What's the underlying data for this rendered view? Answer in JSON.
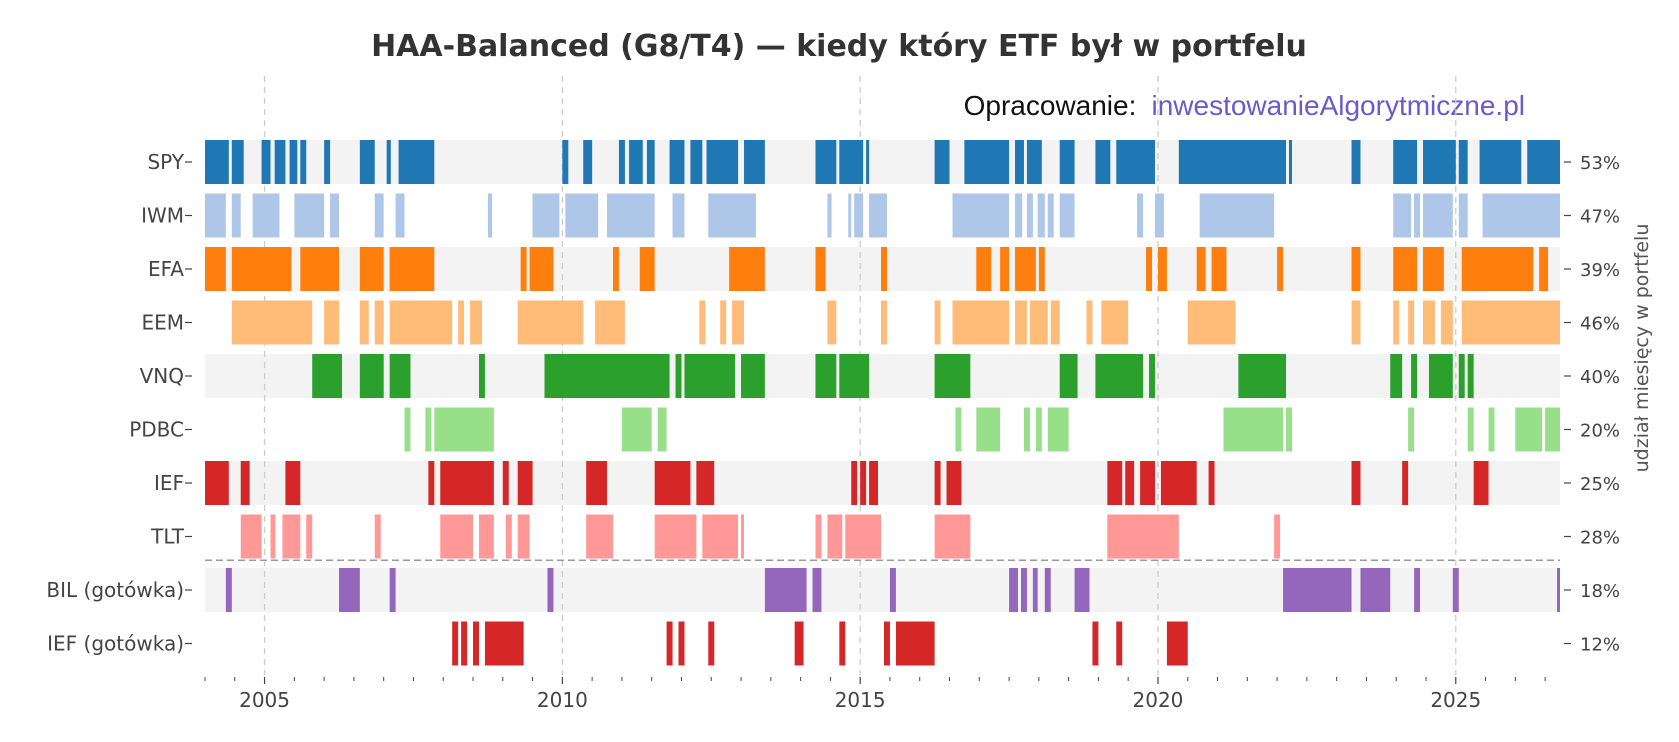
{
  "title": "HAA-Balanced (G8/T4) — kiedy który ETF był w portfelu",
  "credit": {
    "prefix": "Opracowanie:",
    "site": "inwestowanieAlgorytmiczne.pl"
  },
  "chart_data": {
    "type": "timeline",
    "title": "HAA-Balanced (G8/T4) — kiedy który ETF był w portfelu",
    "xlabel": "",
    "ylabel_right": "udział miesięcy w portfelu",
    "xlim": [
      2004.0,
      2026.75
    ],
    "xticks": [
      2005,
      2010,
      2015,
      2020,
      2025
    ],
    "grid_x": true,
    "separator_after_row": 7,
    "rows": [
      {
        "label": "SPY",
        "share": "53%",
        "color": "#1f77b4",
        "band": true,
        "intervals": [
          [
            2004.0,
            2004.4
          ],
          [
            2004.45,
            2004.65
          ],
          [
            2004.95,
            2005.1
          ],
          [
            2005.17,
            2005.35
          ],
          [
            2005.42,
            2005.55
          ],
          [
            2005.6,
            2005.7
          ],
          [
            2006.0,
            2006.1
          ],
          [
            2006.6,
            2006.85
          ],
          [
            2007.05,
            2007.12
          ],
          [
            2007.25,
            2007.85
          ],
          [
            2010.0,
            2010.1
          ],
          [
            2010.35,
            2010.5
          ],
          [
            2010.95,
            2011.05
          ],
          [
            2011.12,
            2011.35
          ],
          [
            2011.42,
            2011.55
          ],
          [
            2011.8,
            2012.05
          ],
          [
            2012.15,
            2012.35
          ],
          [
            2012.42,
            2012.95
          ],
          [
            2013.05,
            2013.4
          ],
          [
            2014.25,
            2014.6
          ],
          [
            2014.65,
            2015.05
          ],
          [
            2015.1,
            2015.15
          ],
          [
            2016.25,
            2016.5
          ],
          [
            2016.75,
            2017.5
          ],
          [
            2017.6,
            2017.75
          ],
          [
            2017.8,
            2018.05
          ],
          [
            2018.35,
            2018.6
          ],
          [
            2018.95,
            2019.2
          ],
          [
            2019.3,
            2019.95
          ],
          [
            2020.35,
            2022.15
          ],
          [
            2022.2,
            2022.25
          ],
          [
            2023.25,
            2023.4
          ],
          [
            2023.95,
            2024.35
          ],
          [
            2024.45,
            2025.0
          ],
          [
            2025.05,
            2025.2
          ],
          [
            2025.4,
            2026.1
          ],
          [
            2026.2,
            2026.75
          ]
        ]
      },
      {
        "label": "IWM",
        "share": "47%",
        "color": "#aec7e8",
        "band": false,
        "intervals": [
          [
            2004.0,
            2004.35
          ],
          [
            2004.45,
            2004.6
          ],
          [
            2004.8,
            2005.25
          ],
          [
            2005.5,
            2006.0
          ],
          [
            2006.1,
            2006.25
          ],
          [
            2006.85,
            2007.0
          ],
          [
            2007.2,
            2007.35
          ],
          [
            2008.75,
            2008.82
          ],
          [
            2009.5,
            2009.95
          ],
          [
            2010.05,
            2010.6
          ],
          [
            2010.75,
            2011.55
          ],
          [
            2011.85,
            2012.05
          ],
          [
            2012.45,
            2013.25
          ],
          [
            2014.45,
            2014.52
          ],
          [
            2014.8,
            2014.85
          ],
          [
            2014.9,
            2015.05
          ],
          [
            2015.15,
            2015.45
          ],
          [
            2016.55,
            2017.5
          ],
          [
            2017.6,
            2017.72
          ],
          [
            2017.8,
            2017.9
          ],
          [
            2017.98,
            2018.1
          ],
          [
            2018.15,
            2018.25
          ],
          [
            2018.35,
            2018.6
          ],
          [
            2019.65,
            2019.75
          ],
          [
            2019.95,
            2020.1
          ],
          [
            2020.7,
            2021.95
          ],
          [
            2023.95,
            2024.25
          ],
          [
            2024.3,
            2024.4
          ],
          [
            2024.45,
            2024.95
          ],
          [
            2025.05,
            2025.2
          ],
          [
            2025.45,
            2026.75
          ]
        ]
      },
      {
        "label": "EFA",
        "share": "39%",
        "color": "#ff7f0e",
        "band": true,
        "intervals": [
          [
            2004.0,
            2004.35
          ],
          [
            2004.45,
            2005.45
          ],
          [
            2005.6,
            2006.25
          ],
          [
            2006.6,
            2007.0
          ],
          [
            2007.1,
            2007.85
          ],
          [
            2009.3,
            2009.4
          ],
          [
            2009.45,
            2009.85
          ],
          [
            2010.85,
            2010.95
          ],
          [
            2011.3,
            2011.55
          ],
          [
            2012.8,
            2013.4
          ],
          [
            2014.25,
            2014.42
          ],
          [
            2015.35,
            2015.45
          ],
          [
            2016.95,
            2017.2
          ],
          [
            2017.35,
            2017.5
          ],
          [
            2017.6,
            2017.95
          ],
          [
            2018.0,
            2018.1
          ],
          [
            2019.8,
            2019.9
          ],
          [
            2020.0,
            2020.15
          ],
          [
            2020.65,
            2020.8
          ],
          [
            2020.9,
            2021.15
          ],
          [
            2022.0,
            2022.1
          ],
          [
            2023.25,
            2023.4
          ],
          [
            2023.95,
            2024.35
          ],
          [
            2024.45,
            2024.8
          ],
          [
            2025.1,
            2026.3
          ],
          [
            2026.4,
            2026.55
          ]
        ]
      },
      {
        "label": "EEM",
        "share": "46%",
        "color": "#ffbb78",
        "band": false,
        "intervals": [
          [
            2004.45,
            2005.8
          ],
          [
            2006.0,
            2006.25
          ],
          [
            2006.6,
            2006.75
          ],
          [
            2006.85,
            2007.0
          ],
          [
            2007.1,
            2008.15
          ],
          [
            2008.25,
            2008.35
          ],
          [
            2008.45,
            2008.65
          ],
          [
            2009.25,
            2010.35
          ],
          [
            2010.55,
            2011.05
          ],
          [
            2012.3,
            2012.4
          ],
          [
            2012.65,
            2012.75
          ],
          [
            2012.85,
            2013.05
          ],
          [
            2014.45,
            2014.6
          ],
          [
            2015.35,
            2015.45
          ],
          [
            2016.25,
            2016.35
          ],
          [
            2016.55,
            2017.5
          ],
          [
            2017.6,
            2017.8
          ],
          [
            2017.85,
            2018.15
          ],
          [
            2018.2,
            2018.35
          ],
          [
            2018.8,
            2018.9
          ],
          [
            2019.05,
            2019.5
          ],
          [
            2020.5,
            2021.3
          ],
          [
            2023.25,
            2023.4
          ],
          [
            2023.95,
            2024.05
          ],
          [
            2024.2,
            2024.3
          ],
          [
            2024.45,
            2024.65
          ],
          [
            2024.75,
            2024.95
          ],
          [
            2025.1,
            2026.75
          ]
        ]
      },
      {
        "label": "VNQ",
        "share": "40%",
        "color": "#2ca02c",
        "band": true,
        "intervals": [
          [
            2005.8,
            2006.3
          ],
          [
            2006.6,
            2007.0
          ],
          [
            2007.1,
            2007.45
          ],
          [
            2008.6,
            2008.7
          ],
          [
            2009.7,
            2011.8
          ],
          [
            2011.9,
            2012.0
          ],
          [
            2012.05,
            2012.9
          ],
          [
            2013.0,
            2013.4
          ],
          [
            2014.25,
            2014.6
          ],
          [
            2014.65,
            2015.15
          ],
          [
            2016.25,
            2016.85
          ],
          [
            2018.35,
            2018.65
          ],
          [
            2018.95,
            2019.75
          ],
          [
            2019.85,
            2019.95
          ],
          [
            2021.35,
            2022.15
          ],
          [
            2023.9,
            2024.1
          ],
          [
            2024.25,
            2024.35
          ],
          [
            2024.55,
            2024.95
          ],
          [
            2025.05,
            2025.15
          ],
          [
            2025.2,
            2025.3
          ]
        ]
      },
      {
        "label": "PDBC",
        "share": "20%",
        "color": "#98df8a",
        "band": false,
        "intervals": [
          [
            2007.35,
            2007.45
          ],
          [
            2007.7,
            2007.8
          ],
          [
            2007.85,
            2008.85
          ],
          [
            2011.0,
            2011.5
          ],
          [
            2011.6,
            2011.75
          ],
          [
            2016.6,
            2016.7
          ],
          [
            2016.95,
            2017.35
          ],
          [
            2017.75,
            2017.85
          ],
          [
            2017.95,
            2018.05
          ],
          [
            2018.15,
            2018.5
          ],
          [
            2021.1,
            2022.1
          ],
          [
            2022.15,
            2022.25
          ],
          [
            2024.2,
            2024.3
          ],
          [
            2025.2,
            2025.3
          ],
          [
            2025.55,
            2025.65
          ],
          [
            2026.0,
            2026.45
          ],
          [
            2026.5,
            2026.75
          ]
        ]
      },
      {
        "label": "IEF",
        "share": "25%",
        "color": "#d62728",
        "band": true,
        "intervals": [
          [
            2004.0,
            2004.4
          ],
          [
            2004.6,
            2004.75
          ],
          [
            2005.35,
            2005.6
          ],
          [
            2007.75,
            2007.85
          ],
          [
            2007.95,
            2008.85
          ],
          [
            2009.0,
            2009.1
          ],
          [
            2009.25,
            2009.5
          ],
          [
            2010.4,
            2010.75
          ],
          [
            2011.55,
            2012.15
          ],
          [
            2012.25,
            2012.55
          ],
          [
            2014.85,
            2014.95
          ],
          [
            2015.0,
            2015.1
          ],
          [
            2015.15,
            2015.3
          ],
          [
            2016.25,
            2016.35
          ],
          [
            2016.45,
            2016.7
          ],
          [
            2019.15,
            2019.4
          ],
          [
            2019.45,
            2019.6
          ],
          [
            2019.7,
            2019.95
          ],
          [
            2020.05,
            2020.65
          ],
          [
            2020.85,
            2020.95
          ],
          [
            2023.25,
            2023.4
          ],
          [
            2024.1,
            2024.2
          ],
          [
            2025.3,
            2025.55
          ]
        ]
      },
      {
        "label": "TLT",
        "share": "28%",
        "color": "#ff9896",
        "band": false,
        "intervals": [
          [
            2004.6,
            2004.95
          ],
          [
            2005.1,
            2005.18
          ],
          [
            2005.3,
            2005.6
          ],
          [
            2005.7,
            2005.8
          ],
          [
            2006.85,
            2006.95
          ],
          [
            2007.95,
            2008.5
          ],
          [
            2008.6,
            2008.85
          ],
          [
            2009.05,
            2009.15
          ],
          [
            2009.25,
            2009.45
          ],
          [
            2010.4,
            2010.85
          ],
          [
            2011.55,
            2012.25
          ],
          [
            2012.35,
            2012.95
          ],
          [
            2013.0,
            2013.05
          ],
          [
            2014.25,
            2014.35
          ],
          [
            2014.45,
            2014.7
          ],
          [
            2014.75,
            2015.35
          ],
          [
            2016.25,
            2016.85
          ],
          [
            2019.15,
            2020.35
          ],
          [
            2021.95,
            2022.05
          ]
        ]
      },
      {
        "label": "BIL (gotówka)",
        "share": "18%",
        "color": "#9467bd",
        "band": true,
        "intervals": [
          [
            2004.35,
            2004.45
          ],
          [
            2006.25,
            2006.6
          ],
          [
            2007.1,
            2007.2
          ],
          [
            2009.75,
            2009.85
          ],
          [
            2013.4,
            2014.1
          ],
          [
            2014.2,
            2014.35
          ],
          [
            2015.5,
            2015.6
          ],
          [
            2017.5,
            2017.65
          ],
          [
            2017.7,
            2017.8
          ],
          [
            2017.9,
            2017.98
          ],
          [
            2018.1,
            2018.2
          ],
          [
            2018.6,
            2018.85
          ],
          [
            2022.1,
            2023.25
          ],
          [
            2023.4,
            2023.9
          ],
          [
            2024.3,
            2024.4
          ],
          [
            2024.95,
            2025.05
          ],
          [
            2026.7,
            2026.75
          ]
        ]
      },
      {
        "label": "IEF (gotówka)",
        "share": "12%",
        "color": "#d62728",
        "band": false,
        "intervals": [
          [
            2008.15,
            2008.25
          ],
          [
            2008.3,
            2008.4
          ],
          [
            2008.5,
            2008.6
          ],
          [
            2008.7,
            2009.35
          ],
          [
            2011.75,
            2011.85
          ],
          [
            2011.95,
            2012.05
          ],
          [
            2012.45,
            2012.55
          ],
          [
            2013.9,
            2014.05
          ],
          [
            2014.65,
            2014.75
          ],
          [
            2015.4,
            2015.5
          ],
          [
            2015.6,
            2016.25
          ],
          [
            2018.9,
            2019.0
          ],
          [
            2019.3,
            2019.4
          ],
          [
            2020.15,
            2020.5
          ]
        ]
      }
    ]
  }
}
